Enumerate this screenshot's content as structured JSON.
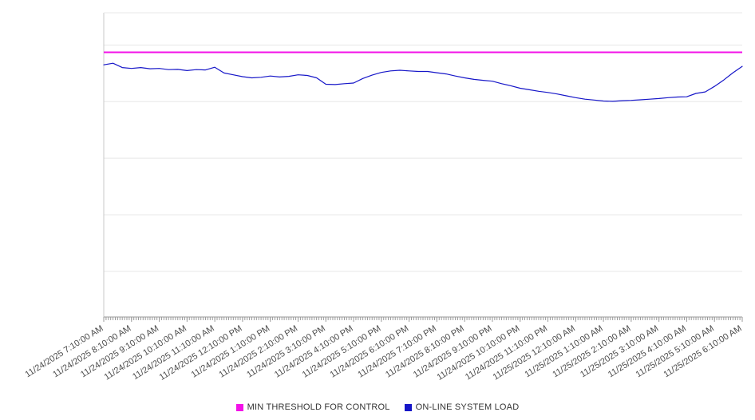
{
  "chart_data": {
    "type": "line",
    "title": "",
    "xlabel": "",
    "ylabel": "",
    "ylim": [
      0,
      100
    ],
    "y_gridlines": [
      15,
      33.6,
      52.2,
      70.8,
      89.4
    ],
    "grid": true,
    "legend_position": "bottom",
    "x_label_rotation_deg": -32,
    "minor_tick_interval_minutes": 5,
    "x_tick_labels": [
      "11/24/2025 7:10:00 AM",
      "11/24/2025 8:10:00 AM",
      "11/24/2025 9:10:00 AM",
      "11/24/2025 10:10:00 AM",
      "11/24/2025 11:10:00 AM",
      "11/24/2025 12:10:00 PM",
      "11/24/2025 1:10:00 PM",
      "11/24/2025 2:10:00 PM",
      "11/24/2025 3:10:00 PM",
      "11/24/2025 4:10:00 PM",
      "11/24/2025 5:10:00 PM",
      "11/24/2025 6:10:00 PM",
      "11/24/2025 7:10:00 PM",
      "11/24/2025 8:10:00 PM",
      "11/24/2025 9:10:00 PM",
      "11/24/2025 10:10:00 PM",
      "11/24/2025 11:10:00 PM",
      "11/25/2025 12:10:00 AM",
      "11/25/2025 1:10:00 AM",
      "11/25/2025 2:10:00 AM",
      "11/25/2025 3:10:00 AM",
      "11/25/2025 4:10:00 AM",
      "11/25/2025 5:10:00 AM",
      "11/25/2025 6:10:00 AM"
    ],
    "points_per_hour": 3,
    "series": [
      {
        "name": "MIN THRESHOLD FOR CONTROL",
        "kind": "threshold",
        "color": "#f312e8",
        "value": 87
      },
      {
        "name": "ON-LINE SYSTEM LOAD",
        "kind": "line",
        "color": "#1616c8",
        "values": [
          82.9,
          83.4,
          82.0,
          81.7,
          82.0,
          81.6,
          81.7,
          81.3,
          81.4,
          81.0,
          81.3,
          81.2,
          82.1,
          80.2,
          79.6,
          79.0,
          78.6,
          78.8,
          79.2,
          78.9,
          79.1,
          79.6,
          79.4,
          78.6,
          76.5,
          76.4,
          76.7,
          76.9,
          78.4,
          79.5,
          80.4,
          80.9,
          81.1,
          80.9,
          80.7,
          80.7,
          80.3,
          79.9,
          79.2,
          78.6,
          78.1,
          77.8,
          77.5,
          76.7,
          76.0,
          75.2,
          74.7,
          74.2,
          73.8,
          73.3,
          72.7,
          72.1,
          71.6,
          71.3,
          71.0,
          70.9,
          71.1,
          71.2,
          71.4,
          71.6,
          71.8,
          72.1,
          72.3,
          72.4,
          73.5,
          74.0,
          75.8,
          77.9,
          80.3,
          82.4
        ]
      }
    ],
    "colors": {
      "gridline": "#e8e8e8",
      "axis_line": "#c8c8c8",
      "tick": "#9a9a9a",
      "tick_label": "#4a4a4a"
    }
  }
}
